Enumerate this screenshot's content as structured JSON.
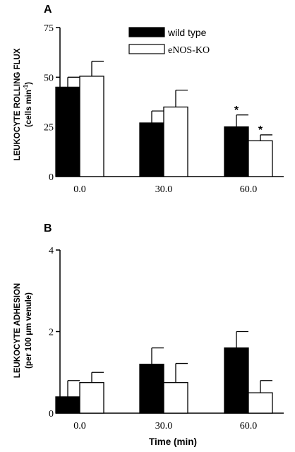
{
  "chart_data": [
    {
      "panel": "A",
      "type": "bar",
      "ylabel_line1": "LEUKOCYTE ROLLING FLUX",
      "ylabel_line2": "(cells min",
      "ylabel_sup": "-1",
      "ylabel_close": ")",
      "xlabel": "",
      "ylim": [
        0,
        75
      ],
      "yticks": [
        0,
        25,
        50,
        75
      ],
      "categories": [
        "0.0",
        "30.0",
        "60.0"
      ],
      "series": [
        {
          "name": "wild type",
          "color": "#000000",
          "values": [
            45,
            27,
            25
          ],
          "errors": [
            5,
            6,
            6
          ],
          "significant": [
            false,
            false,
            true
          ]
        },
        {
          "name": "eNOS-KO",
          "color": "#ffffff",
          "values": [
            50.5,
            35,
            18
          ],
          "errors": [
            7.5,
            8.5,
            3
          ],
          "significant": [
            false,
            false,
            true
          ]
        }
      ],
      "annotation_symbol": "*",
      "legend_position": "top-right"
    },
    {
      "panel": "B",
      "type": "bar",
      "ylabel_line1": "LEUKOCYTE ADHESION",
      "ylabel_line2": "(per 100 μm venule)",
      "xlabel": "Time (min)",
      "ylim": [
        0,
        4
      ],
      "yticks": [
        0,
        2,
        4
      ],
      "categories": [
        "0.0",
        "30.0",
        "60.0"
      ],
      "series": [
        {
          "name": "wild type",
          "color": "#000000",
          "values": [
            0.4,
            1.2,
            1.6
          ],
          "errors": [
            0.4,
            0.4,
            0.4
          ]
        },
        {
          "name": "eNOS-KO",
          "color": "#ffffff",
          "values": [
            0.75,
            0.75,
            0.5
          ],
          "errors": [
            0.25,
            0.47,
            0.3
          ]
        }
      ]
    }
  ]
}
